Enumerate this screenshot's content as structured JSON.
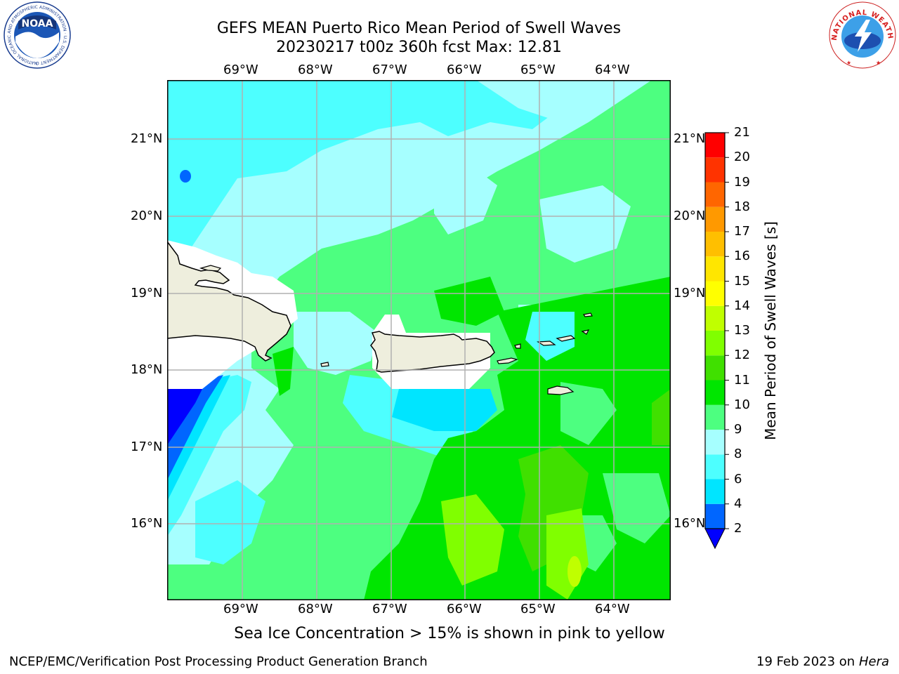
{
  "header": {
    "title_line1": "GEFS MEAN Puerto Rico Mean Period of Swell Waves",
    "title_line2": "20230217 t00z 360h fcst   Max: 12.81"
  },
  "logos": {
    "left": {
      "text": "NOAA",
      "ring_text": "NATIONAL OCEANIC AND ATMOSPHERIC ADMINISTRATION · U.S. DEPARTMENT OF COMMERCE"
    },
    "right": {
      "ring_text": "NATIONAL WEATHER SERVICE"
    }
  },
  "map": {
    "lon_labels": [
      "69°W",
      "68°W",
      "67°W",
      "66°W",
      "65°W",
      "64°W"
    ],
    "lat_labels": [
      "21°N",
      "20°N",
      "19°N",
      "18°N",
      "17°N",
      "16°N"
    ]
  },
  "colorbar": {
    "label": "Mean Period of Swell Waves [s]",
    "ticks": [
      "2",
      "4",
      "6",
      "8",
      "9",
      "10",
      "11",
      "12",
      "13",
      "14",
      "15",
      "16",
      "17",
      "18",
      "19",
      "20",
      "21"
    ],
    "colors": [
      "#0000ff",
      "#0066ff",
      "#00e5ff",
      "#4dffff",
      "#a6ffff",
      "#4dff80",
      "#00e600",
      "#40e000",
      "#80ff00",
      "#c0ff00",
      "#ffff00",
      "#ffe600",
      "#ffbf00",
      "#ff9900",
      "#ff6600",
      "#ff3300",
      "#ff0000"
    ]
  },
  "note": "Sea Ice Concentration > 15% is shown in pink to yellow",
  "footer": {
    "left": "NCEP/EMC/Verification Post Processing Product Generation Branch",
    "date": "19 Feb 2023 on",
    "machine": "Hera"
  }
}
